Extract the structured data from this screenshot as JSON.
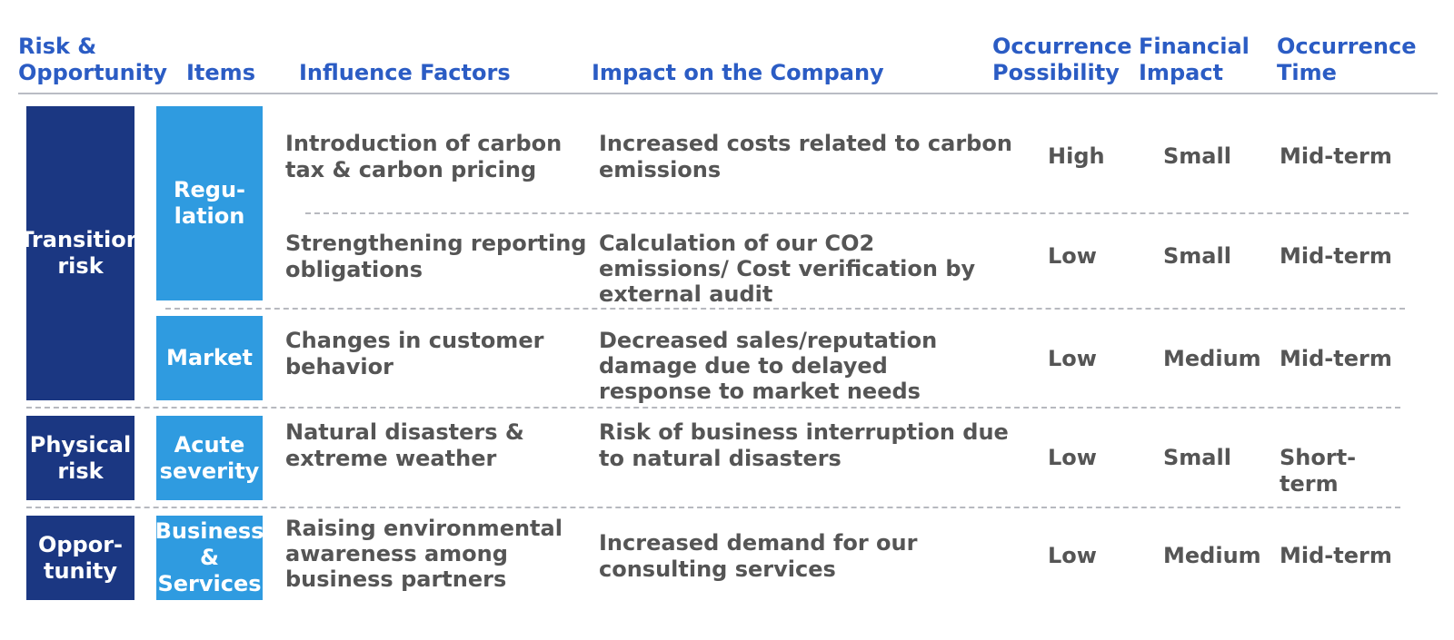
{
  "header": {
    "risk_opportunity": "Risk &\nOpportunity",
    "items": "Items",
    "influence_factors": "Influence Factors",
    "impact": "Impact on the Company",
    "occurrence_possibility": "Occurrence\nPossibility",
    "financial_impact": "Financial\nImpact",
    "occurrence_time": "Occurrence\nTime"
  },
  "categories": {
    "transition": "Transition\nrisk",
    "physical": "Physical\nrisk",
    "opportunity": "Oppor-\ntunity"
  },
  "items": {
    "regulation": "Regu-\nlation",
    "market": "Market",
    "acute": "Acute\nseverity",
    "business": "Business\n& Services"
  },
  "rows": [
    {
      "factor": "Introduction of carbon\ntax & carbon pricing",
      "impact": "Increased costs related to carbon\nemissions",
      "possibility": "High",
      "financial": "Small",
      "time": "Mid-term"
    },
    {
      "factor": "Strengthening reporting\nobligations",
      "impact": "Calculation of our CO2\nemissions/ Cost verification by\nexternal audit",
      "possibility": "Low",
      "financial": "Small",
      "time": "Mid-term"
    },
    {
      "factor": "Changes in customer\nbehavior",
      "impact": "Decreased sales/reputation\ndamage due to delayed\nresponse to market needs",
      "possibility": "Low",
      "financial": "Medium",
      "time": "Mid-term"
    },
    {
      "factor": "Natural disasters &\nextreme weather",
      "impact": "Risk of business interruption due\nto natural disasters",
      "possibility": "Low",
      "financial": "Small",
      "time": "Short-\nterm"
    },
    {
      "factor": "Raising environmental\nawareness among\nbusiness partners",
      "impact": "Increased demand for our\nconsulting services",
      "possibility": "Low",
      "financial": "Medium",
      "time": "Mid-term"
    }
  ]
}
